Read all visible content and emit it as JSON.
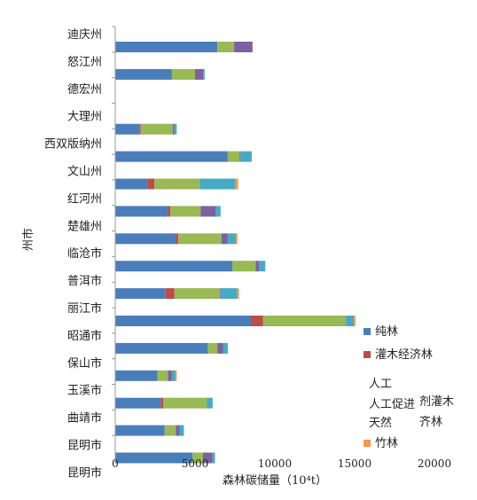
{
  "chart_data": {
    "type": "bar",
    "orientation": "horizontal",
    "stacked": true,
    "categories": [
      "迪庆州",
      "怒江州",
      "德宏州",
      "大理州",
      "西双版纳州",
      "文山州",
      "红河州",
      "楚雄州",
      "临沧市",
      "普洱市",
      "丽江市",
      "昭通市",
      "保山市",
      "玉溪市",
      "曲靖市",
      "昆明市",
      "昆明市"
    ],
    "series": [
      {
        "name": "纯林",
        "color": "#4a7ebb",
        "values": [
          6400,
          3550,
          0,
          1550,
          7050,
          2050,
          3300,
          3800,
          7350,
          3150,
          8500,
          5800,
          2650,
          2850,
          3100,
          4850,
          0
        ]
      },
      {
        "name": "灌木经济林",
        "color": "#be4b48",
        "values": [
          0,
          0,
          0,
          50,
          0,
          400,
          150,
          150,
          0,
          550,
          750,
          0,
          0,
          150,
          0,
          0,
          0
        ]
      },
      {
        "name": "人工",
        "color": "#98b954",
        "values": [
          1050,
          1450,
          0,
          2000,
          750,
          2850,
          1900,
          2700,
          1450,
          2850,
          5200,
          600,
          650,
          2750,
          700,
          650,
          0
        ]
      },
      {
        "name": "人工促进",
        "color": "#7d60a0",
        "values": [
          1150,
          500,
          0,
          100,
          50,
          0,
          950,
          400,
          200,
          50,
          0,
          350,
          250,
          0,
          250,
          600,
          0
        ]
      },
      {
        "name": "天然",
        "color": "#46aac5",
        "values": [
          0,
          100,
          0,
          150,
          700,
          2200,
          300,
          500,
          400,
          1050,
          500,
          300,
          200,
          350,
          250,
          150,
          0
        ]
      },
      {
        "name": "竹林",
        "color": "#f79646",
        "values": [
          0,
          0,
          0,
          0,
          0,
          200,
          0,
          100,
          0,
          100,
          100,
          0,
          100,
          0,
          0,
          0,
          0
        ]
      }
    ],
    "xlabel": "森林碳储量（10⁴t）",
    "ylabel": "州市",
    "xlim": [
      0,
      20000
    ],
    "xticks": [
      "0",
      "5000",
      "10000",
      "15000",
      "20000"
    ],
    "grid": false,
    "legend_position": "right",
    "legend_fragments": [
      "剂灌木",
      "齐林"
    ]
  }
}
